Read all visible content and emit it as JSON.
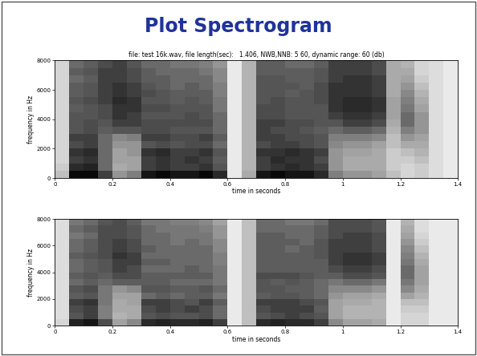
{
  "slide": {
    "title": "Plot Spectrogram"
  },
  "chart_data": [
    {
      "type": "heatmap",
      "title": "file: test 16k.wav, file length(sec):   1.406, NWB,NNB: 5 60, dynamic range: 60 (db)",
      "xlabel": "time in seconds",
      "ylabel": "frequency in Hz",
      "xlim": [
        0,
        1.4
      ],
      "ylim": [
        0,
        8000
      ],
      "xticks": [
        0,
        0.2,
        0.4,
        0.6,
        0.8,
        1,
        1.2,
        1.4
      ],
      "yticks": [
        0,
        2000,
        4000,
        6000,
        8000
      ],
      "zlim": [
        0,
        60
      ],
      "time_edges": [
        0,
        0.05,
        0.1,
        0.15,
        0.2,
        0.25,
        0.3,
        0.35,
        0.4,
        0.45,
        0.5,
        0.55,
        0.6,
        0.65,
        0.7,
        0.75,
        0.8,
        0.85,
        0.9,
        0.95,
        1.0,
        1.05,
        1.1,
        1.15,
        1.2,
        1.25,
        1.3,
        1.35,
        1.4
      ],
      "freq_edges": [
        0,
        500,
        1000,
        1500,
        2000,
        2500,
        3000,
        3500,
        4000,
        4500,
        5000,
        5500,
        6000,
        6500,
        7000,
        7500,
        8000
      ],
      "cells": [
        [
          15,
          12,
          10,
          10,
          10,
          10,
          10,
          10,
          10,
          10,
          10,
          10,
          10,
          10,
          10,
          10
        ],
        [
          58,
          50,
          45,
          48,
          42,
          45,
          40,
          40,
          40,
          38,
          40,
          38,
          38,
          35,
          38,
          35
        ],
        [
          58,
          52,
          48,
          50,
          45,
          45,
          42,
          42,
          40,
          40,
          42,
          40,
          40,
          38,
          40,
          38
        ],
        [
          45,
          35,
          35,
          35,
          35,
          35,
          38,
          40,
          42,
          42,
          45,
          45,
          45,
          45,
          45,
          42
        ],
        [
          25,
          20,
          22,
          22,
          25,
          28,
          40,
          45,
          48,
          48,
          50,
          48,
          48,
          45,
          45,
          45
        ],
        [
          30,
          22,
          22,
          25,
          25,
          30,
          40,
          45,
          45,
          48,
          48,
          45,
          45,
          42,
          42,
          40
        ],
        [
          55,
          45,
          45,
          48,
          40,
          45,
          42,
          42,
          40,
          42,
          40,
          42,
          40,
          38,
          38,
          35
        ],
        [
          58,
          48,
          48,
          50,
          42,
          45,
          42,
          42,
          40,
          42,
          40,
          40,
          38,
          38,
          35,
          35
        ],
        [
          55,
          45,
          45,
          45,
          40,
          42,
          40,
          42,
          40,
          40,
          38,
          38,
          35,
          35,
          35,
          32
        ],
        [
          55,
          45,
          48,
          45,
          42,
          42,
          40,
          42,
          42,
          40,
          40,
          38,
          38,
          35,
          35,
          32
        ],
        [
          58,
          48,
          45,
          48,
          42,
          45,
          40,
          42,
          40,
          40,
          38,
          38,
          35,
          35,
          32,
          30
        ],
        [
          50,
          40,
          38,
          40,
          35,
          38,
          35,
          35,
          35,
          32,
          32,
          30,
          30,
          28,
          28,
          25
        ],
        [
          5,
          5,
          5,
          5,
          5,
          5,
          5,
          5,
          5,
          5,
          5,
          5,
          5,
          5,
          5,
          5
        ],
        [
          20,
          18,
          18,
          18,
          18,
          18,
          18,
          18,
          18,
          18,
          18,
          18,
          18,
          18,
          18,
          18
        ],
        [
          55,
          45,
          45,
          48,
          42,
          45,
          45,
          45,
          42,
          42,
          40,
          40,
          40,
          40,
          38,
          38
        ],
        [
          58,
          48,
          50,
          48,
          45,
          45,
          42,
          45,
          42,
          42,
          42,
          40,
          40,
          40,
          38,
          38
        ],
        [
          55,
          50,
          48,
          50,
          45,
          42,
          42,
          42,
          40,
          40,
          40,
          38,
          40,
          38,
          38,
          35
        ],
        [
          55,
          48,
          48,
          48,
          42,
          42,
          40,
          42,
          40,
          40,
          40,
          40,
          38,
          38,
          38,
          35
        ],
        [
          50,
          45,
          42,
          45,
          40,
          40,
          38,
          40,
          40,
          40,
          42,
          42,
          42,
          40,
          40,
          38
        ],
        [
          30,
          25,
          25,
          25,
          28,
          30,
          35,
          40,
          45,
          48,
          48,
          48,
          48,
          45,
          45,
          45
        ],
        [
          25,
          20,
          20,
          22,
          25,
          30,
          38,
          45,
          48,
          50,
          50,
          48,
          48,
          48,
          45,
          45
        ],
        [
          25,
          20,
          20,
          22,
          25,
          30,
          38,
          45,
          48,
          50,
          50,
          48,
          48,
          48,
          45,
          45
        ],
        [
          22,
          20,
          20,
          20,
          22,
          28,
          35,
          42,
          45,
          48,
          48,
          45,
          45,
          45,
          42,
          42
        ],
        [
          15,
          12,
          12,
          12,
          15,
          15,
          18,
          20,
          22,
          22,
          22,
          20,
          20,
          20,
          20,
          20
        ],
        [
          10,
          10,
          12,
          15,
          20,
          25,
          30,
          35,
          35,
          32,
          30,
          28,
          25,
          22,
          20,
          18
        ],
        [
          12,
          12,
          15,
          18,
          20,
          22,
          25,
          25,
          25,
          22,
          20,
          18,
          15,
          12,
          10,
          10
        ],
        [
          8,
          8,
          8,
          8,
          8,
          8,
          8,
          8,
          8,
          8,
          8,
          8,
          8,
          8,
          8,
          8
        ],
        [
          5,
          5,
          5,
          5,
          5,
          5,
          5,
          5,
          5,
          5,
          5,
          5,
          5,
          5,
          5,
          5
        ]
      ]
    },
    {
      "type": "heatmap",
      "xlabel": "time in seconds",
      "ylabel": "frequency in Hz",
      "xlim": [
        0,
        1.4
      ],
      "ylim": [
        0,
        8000
      ],
      "xticks": [
        0,
        0.2,
        0.4,
        0.6,
        0.8,
        1,
        1.2,
        1.4
      ],
      "yticks": [
        0,
        2000,
        4000,
        6000,
        8000
      ],
      "zlim": [
        0,
        60
      ],
      "time_edges": [
        0,
        0.05,
        0.1,
        0.15,
        0.2,
        0.25,
        0.3,
        0.35,
        0.4,
        0.45,
        0.5,
        0.55,
        0.6,
        0.65,
        0.7,
        0.75,
        0.8,
        0.85,
        0.9,
        0.95,
        1.0,
        1.05,
        1.1,
        1.15,
        1.2,
        1.25,
        1.3,
        1.35,
        1.4
      ],
      "freq_edges": [
        0,
        500,
        1000,
        1500,
        2000,
        2500,
        3000,
        3500,
        4000,
        4500,
        5000,
        5500,
        6000,
        6500,
        7000,
        7500,
        8000
      ],
      "cells": [
        [
          10,
          8,
          8,
          8,
          8,
          8,
          8,
          8,
          8,
          8,
          8,
          8,
          8,
          8,
          8,
          8
        ],
        [
          52,
          40,
          42,
          45,
          38,
          40,
          35,
          38,
          35,
          35,
          38,
          35,
          35,
          32,
          35,
          32
        ],
        [
          55,
          45,
          45,
          48,
          40,
          42,
          38,
          40,
          38,
          38,
          40,
          38,
          38,
          35,
          38,
          35
        ],
        [
          42,
          30,
          30,
          32,
          32,
          32,
          35,
          38,
          40,
          40,
          42,
          42,
          42,
          42,
          42,
          40
        ],
        [
          22,
          18,
          20,
          20,
          22,
          25,
          38,
          42,
          45,
          45,
          48,
          45,
          45,
          42,
          42,
          42
        ],
        [
          28,
          20,
          20,
          22,
          22,
          28,
          38,
          42,
          42,
          45,
          45,
          42,
          42,
          40,
          40,
          38
        ],
        [
          50,
          40,
          42,
          45,
          35,
          40,
          38,
          38,
          35,
          38,
          35,
          38,
          35,
          35,
          35,
          32
        ],
        [
          52,
          42,
          45,
          45,
          38,
          40,
          38,
          38,
          35,
          38,
          35,
          35,
          35,
          35,
          32,
          32
        ],
        [
          50,
          40,
          42,
          42,
          35,
          38,
          35,
          38,
          35,
          35,
          35,
          35,
          32,
          32,
          32,
          30
        ],
        [
          50,
          40,
          45,
          40,
          38,
          38,
          35,
          38,
          38,
          35,
          35,
          35,
          35,
          32,
          32,
          30
        ],
        [
          52,
          42,
          42,
          45,
          38,
          40,
          35,
          38,
          35,
          35,
          35,
          35,
          32,
          32,
          30,
          28
        ],
        [
          45,
          35,
          35,
          38,
          32,
          35,
          32,
          32,
          32,
          30,
          30,
          28,
          28,
          25,
          25,
          22
        ],
        [
          5,
          5,
          5,
          5,
          5,
          5,
          5,
          5,
          5,
          5,
          5,
          5,
          5,
          5,
          5,
          5
        ],
        [
          15,
          15,
          15,
          15,
          15,
          15,
          15,
          15,
          15,
          15,
          15,
          15,
          15,
          15,
          15,
          15
        ],
        [
          50,
          40,
          42,
          45,
          38,
          40,
          40,
          42,
          38,
          38,
          38,
          38,
          38,
          38,
          35,
          35
        ],
        [
          52,
          42,
          45,
          45,
          40,
          40,
          38,
          42,
          38,
          38,
          38,
          38,
          38,
          38,
          35,
          35
        ],
        [
          50,
          45,
          45,
          45,
          40,
          38,
          40,
          42,
          38,
          38,
          38,
          35,
          38,
          35,
          35,
          32
        ],
        [
          50,
          42,
          45,
          42,
          38,
          38,
          38,
          40,
          38,
          38,
          38,
          38,
          35,
          35,
          35,
          32
        ],
        [
          45,
          40,
          38,
          40,
          35,
          35,
          35,
          38,
          38,
          38,
          40,
          40,
          40,
          38,
          38,
          35
        ],
        [
          28,
          22,
          22,
          22,
          25,
          28,
          32,
          38,
          42,
          45,
          45,
          45,
          45,
          42,
          42,
          42
        ],
        [
          22,
          18,
          18,
          20,
          22,
          28,
          35,
          42,
          45,
          48,
          48,
          45,
          45,
          45,
          42,
          42
        ],
        [
          22,
          18,
          18,
          20,
          22,
          28,
          35,
          42,
          45,
          48,
          48,
          45,
          45,
          45,
          42,
          42
        ],
        [
          20,
          18,
          18,
          18,
          20,
          25,
          32,
          40,
          42,
          45,
          45,
          42,
          42,
          42,
          40,
          40
        ],
        [
          5,
          5,
          5,
          5,
          5,
          5,
          5,
          5,
          5,
          5,
          5,
          5,
          5,
          5,
          5,
          5
        ],
        [
          10,
          10,
          12,
          15,
          22,
          28,
          32,
          35,
          35,
          32,
          30,
          28,
          25,
          22,
          20,
          18
        ],
        [
          10,
          10,
          12,
          15,
          18,
          20,
          22,
          22,
          22,
          20,
          18,
          15,
          12,
          10,
          8,
          8
        ],
        [
          5,
          5,
          5,
          5,
          5,
          5,
          5,
          5,
          5,
          5,
          5,
          5,
          5,
          5,
          5,
          5
        ],
        [
          5,
          5,
          5,
          5,
          5,
          5,
          5,
          5,
          5,
          5,
          5,
          5,
          5,
          5,
          5,
          5
        ]
      ]
    }
  ]
}
